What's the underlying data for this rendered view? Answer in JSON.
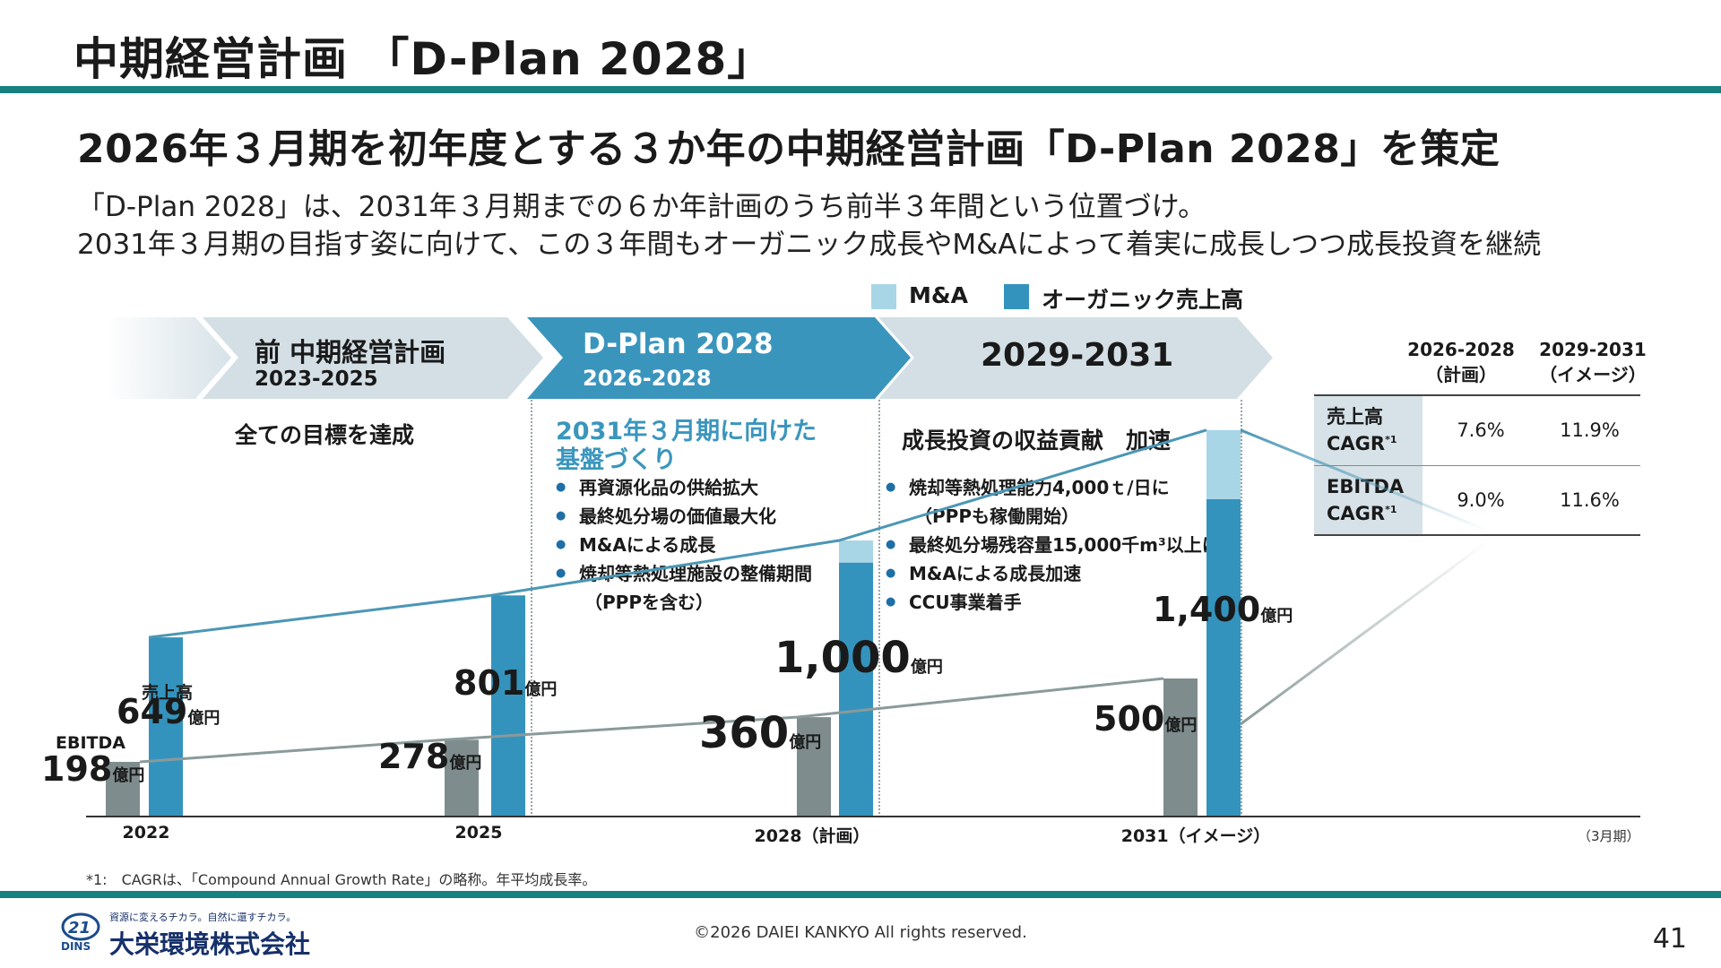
{
  "header": {
    "title": "中期経営計画 「D-Plan 2028」",
    "headline": "2026年３月期を初年度とする３か年の中期経営計画「D-Plan 2028」を策定",
    "body_line1": "「D-Plan 2028」は、2031年３月期までの６か年計画のうち前半３年間という位置づけ。",
    "body_line2": "2031年３月期の目指す姿に向けて、この３年間もオーガニック成長やM&Aによって着実に成長しつつ成長投資を継続"
  },
  "legend": {
    "ma_label": "M&A",
    "organic_label": "オーガニック売上高"
  },
  "phases": [
    {
      "title": "前 中期経営計画",
      "years": "2023-2025"
    },
    {
      "title": "D-Plan 2028",
      "years": "2026-2028"
    },
    {
      "title": "2029-2031",
      "years": ""
    }
  ],
  "columns": {
    "prev": {
      "heading": "全ての目標を達成"
    },
    "dplan": {
      "heading_line1": "2031年３月期に向けた",
      "heading_line2": "基盤づくり",
      "bullets": [
        {
          "text": "再資源化品の供給拡大",
          "sub": ""
        },
        {
          "text": "最終処分場の価値最大化",
          "sub": ""
        },
        {
          "text": "M&Aによる成長",
          "sub": ""
        },
        {
          "text": "焼却等熱処理施設の整備期間",
          "sub": "（PPPを含む）"
        }
      ]
    },
    "future": {
      "heading": "成長投資の収益貢献　加速",
      "bullets": [
        {
          "text": "焼却等熱処理能力4,000ｔ/日に",
          "sub": "（PPPも稼働開始）"
        },
        {
          "text": "最終処分場残容量15,000千m³以上に",
          "sub": ""
        },
        {
          "text": "M&Aによる成長加速",
          "sub": ""
        },
        {
          "text": "CCU事業着手",
          "sub": ""
        }
      ]
    }
  },
  "cagr_table": {
    "col1_line1": "2026-2028",
    "col1_line2": "（計画）",
    "col2_line1": "2029-2031",
    "col2_line2": "（イメージ）",
    "rows": [
      {
        "label_line1": "売上高",
        "label_line2": "CAGR",
        "sup": "*1",
        "v1": "7.6%",
        "v2": "11.9%"
      },
      {
        "label_line1": "EBITDA",
        "label_line2": "CAGR",
        "sup": "*1",
        "v1": "9.0%",
        "v2": "11.6%"
      }
    ]
  },
  "chart_labels": {
    "sales_series_label": "売上高",
    "ebitda_series_label": "EBITDA",
    "unit": "億円",
    "period_note": "（3月期）",
    "sales_labels": [
      "649",
      "801",
      "1,000",
      "1,400"
    ],
    "ebitda_labels": [
      "198",
      "278",
      "360",
      "500"
    ]
  },
  "chart_data": {
    "type": "bar",
    "categories": [
      "2022",
      "2025",
      "2028（計画）",
      "2031（イメージ）"
    ],
    "series": [
      {
        "name": "EBITDA",
        "values": [
          198,
          278,
          360,
          500
        ]
      },
      {
        "name": "オーガニック売上高",
        "values": [
          649,
          801,
          920,
          1150
        ]
      },
      {
        "name": "M&A",
        "values": [
          0,
          0,
          80,
          250
        ]
      }
    ],
    "colors": {
      "ebitda": "#7f8c8d",
      "organic": "#3493bd",
      "ma": "#a9d6e6",
      "sales_line": "#4b97b5",
      "ebitda_line": "#8a9a9a"
    },
    "title": "",
    "xlabel": "",
    "ylabel": "",
    "ylim": [
      0,
      1500
    ]
  },
  "footer": {
    "footnote": "*1:　CAGRは、「Compound Annual Growth Rate」の略称。年平均成長率。",
    "copyright": "©2026 DAIEI KANKYO All rights reserved.",
    "page_number": "41",
    "company_name": "大栄環境株式会社",
    "company_tagline": "資源に変えるチカラ。自然に還すチカラ。",
    "logo_text": "DINS"
  }
}
